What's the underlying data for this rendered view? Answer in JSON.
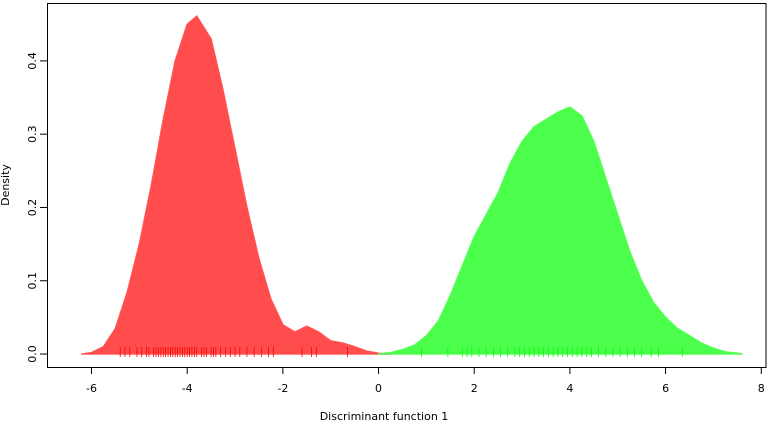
{
  "chart_data": {
    "type": "density",
    "xlabel": "Discriminant function 1",
    "ylabel": "Density",
    "xlim": [
      -6.93,
      8.12
    ],
    "ylim": [
      -0.0177,
      0.479
    ],
    "xticks": [
      -6,
      -4,
      -2,
      0,
      2,
      4,
      6,
      8
    ],
    "yticks": [
      {
        "value": 0,
        "label": "0.0"
      },
      0.1,
      0.2,
      0.3,
      0.4
    ],
    "series": [
      {
        "color": "#ff4d4d",
        "rug_color": "#ff0000",
        "x": [
          -6.2,
          -6.0,
          -5.75,
          -5.5,
          -5.25,
          -5.0,
          -4.75,
          -4.5,
          -4.25,
          -4.0,
          -3.8,
          -3.5,
          -3.25,
          -3.0,
          -2.75,
          -2.5,
          -2.25,
          -2.0,
          -1.75,
          -1.5,
          -1.25,
          -1.0,
          -0.75,
          -0.5,
          -0.25,
          0,
          0.25
        ],
        "values": [
          0.0,
          0.002,
          0.01,
          0.035,
          0.085,
          0.15,
          0.23,
          0.32,
          0.4,
          0.45,
          0.461,
          0.43,
          0.36,
          0.28,
          0.2,
          0.13,
          0.075,
          0.04,
          0.03,
          0.038,
          0.03,
          0.018,
          0.015,
          0.01,
          0.004,
          0.001,
          0.0
        ],
        "rug": [
          -5.4,
          -5.3,
          -5.2,
          -5.05,
          -4.95,
          -4.85,
          -4.8,
          -4.7,
          -4.65,
          -4.6,
          -4.55,
          -4.5,
          -4.45,
          -4.4,
          -4.35,
          -4.3,
          -4.25,
          -4.2,
          -4.15,
          -4.1,
          -4.05,
          -4.0,
          -3.95,
          -3.9,
          -3.85,
          -3.8,
          -3.7,
          -3.65,
          -3.6,
          -3.5,
          -3.45,
          -3.4,
          -3.3,
          -3.2,
          -3.1,
          -3.0,
          -2.9,
          -2.75,
          -2.6,
          -2.45,
          -2.3,
          -2.2,
          -1.6,
          -1.4,
          -1.3,
          -0.65
        ]
      },
      {
        "color": "#4dff4d",
        "rug_color": "#00ff00",
        "x": [
          0,
          0.25,
          0.5,
          0.75,
          1.0,
          1.25,
          1.5,
          1.75,
          2.0,
          2.25,
          2.5,
          2.75,
          3.0,
          3.25,
          3.5,
          3.75,
          4.0,
          4.25,
          4.5,
          4.75,
          5.0,
          5.25,
          5.5,
          5.75,
          6.0,
          6.25,
          6.5,
          6.75,
          7.0,
          7.25,
          7.5,
          7.6
        ],
        "values": [
          0.0,
          0.002,
          0.006,
          0.012,
          0.025,
          0.045,
          0.08,
          0.12,
          0.16,
          0.19,
          0.22,
          0.26,
          0.29,
          0.31,
          0.32,
          0.33,
          0.337,
          0.325,
          0.29,
          0.24,
          0.19,
          0.14,
          0.1,
          0.07,
          0.05,
          0.035,
          0.025,
          0.015,
          0.008,
          0.003,
          0.001,
          0.0
        ],
        "rug": [
          0.9,
          1.45,
          1.75,
          1.85,
          1.95,
          2.1,
          2.25,
          2.4,
          2.55,
          2.7,
          2.85,
          2.95,
          3.05,
          3.15,
          3.25,
          3.35,
          3.45,
          3.55,
          3.65,
          3.75,
          3.85,
          3.95,
          4.05,
          4.15,
          4.25,
          4.35,
          4.45,
          4.6,
          4.75,
          4.9,
          5.05,
          5.2,
          5.35,
          5.5,
          5.7,
          5.85,
          6.35
        ]
      }
    ]
  }
}
